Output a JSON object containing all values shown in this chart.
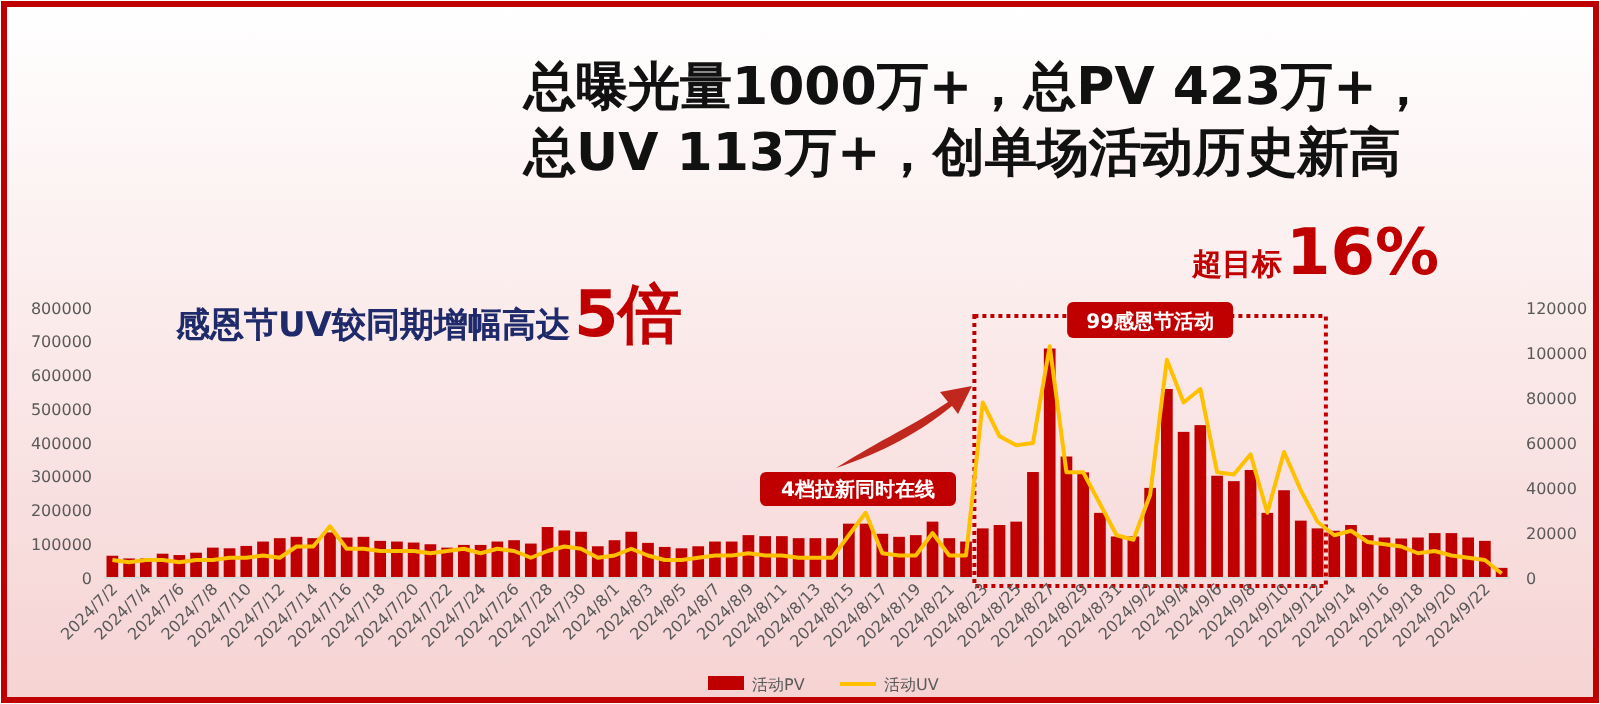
{
  "chart_data": {
    "type": "bar",
    "title": "总曝光量1000万+，总PV 423万+，",
    "subtitle": "总UV 113万+，创单场活动历史新高",
    "annotations": [
      "感恩节UV较同期增幅高达",
      "5倍",
      "超目标",
      "16%",
      "4档拉新同时在线",
      "99感恩节活动"
    ],
    "categories": [
      "2024/7/2",
      null,
      "2024/7/4",
      null,
      "2024/7/6",
      null,
      "2024/7/8",
      null,
      "2024/7/10",
      null,
      "2024/7/12",
      null,
      "2024/7/14",
      null,
      "2024/7/16",
      null,
      "2024/7/18",
      null,
      "2024/7/20",
      null,
      "2024/7/22",
      null,
      "2024/7/24",
      null,
      "2024/7/26",
      null,
      "2024/7/28",
      null,
      "2024/7/30",
      null,
      "2024/8/1",
      null,
      "2024/8/3",
      null,
      "2024/8/5",
      null,
      "2024/8/7",
      null,
      "2024/8/9",
      null,
      "2024/8/11",
      null,
      "2024/8/13",
      null,
      "2024/8/15",
      null,
      "2024/8/17",
      null,
      "2024/8/19",
      null,
      "2024/8/21",
      null,
      "2024/8/23",
      null,
      "2024/8/25",
      null,
      "2024/8/27",
      null,
      "2024/8/29",
      null,
      "2024/8/31",
      null,
      "2024/9/2",
      null,
      "2024/9/4",
      null,
      "2024/9/6",
      null,
      "2024/9/8",
      null,
      "2024/9/10",
      null,
      "2024/9/12",
      null,
      "2024/9/14",
      null,
      "2024/9/16",
      null,
      "2024/9/18",
      null,
      "2024/9/20",
      null,
      "2024/9/22",
      null
    ],
    "series": [
      {
        "name": "活动PV",
        "color": "#c00000",
        "values": [
          66000,
          58000,
          58000,
          72000,
          68000,
          75000,
          90000,
          88000,
          95000,
          108000,
          118000,
          122000,
          118000,
          135000,
          120000,
          122000,
          110000,
          108000,
          105000,
          100000,
          90000,
          98000,
          98000,
          108000,
          112000,
          102000,
          151000,
          141000,
          137000,
          94000,
          112000,
          137000,
          104000,
          92000,
          88000,
          94000,
          108000,
          108000,
          127000,
          124000,
          124000,
          118000,
          118000,
          118000,
          161000,
          161000,
          131000,
          122000,
          127000,
          167000,
          118000,
          108000,
          147000,
          157000,
          167000,
          314000,
          680000,
          360000,
          313000,
          193000,
          123000,
          123000,
          267000,
          560000,
          433000,
          453000,
          303000,
          287000,
          320000,
          193000,
          260000,
          170000,
          147000,
          140000,
          157000,
          127000,
          120000,
          117000,
          120000,
          133000,
          133000,
          120000,
          110000,
          30000
        ]
      },
      {
        "name": "活动UV",
        "type": "line",
        "axis": "y2",
        "color": "#ffc000",
        "values": [
          8000,
          7000,
          8000,
          8000,
          7000,
          8000,
          8000,
          9000,
          9000,
          10000,
          9000,
          14000,
          14000,
          23000,
          13000,
          13000,
          12000,
          12000,
          12000,
          11000,
          12000,
          13000,
          11000,
          13000,
          12000,
          9000,
          12000,
          14000,
          13000,
          9000,
          10000,
          13000,
          10000,
          8000,
          8000,
          9000,
          10000,
          10000,
          11000,
          10000,
          10000,
          9000,
          9000,
          9000,
          19000,
          29000,
          11000,
          10000,
          10000,
          20000,
          10000,
          10000,
          78000,
          63000,
          59000,
          60000,
          103000,
          47000,
          47000,
          33000,
          19000,
          17000,
          37000,
          97000,
          78000,
          84000,
          47000,
          46000,
          55000,
          29000,
          56000,
          39000,
          25000,
          19000,
          21000,
          16000,
          15000,
          14000,
          11000,
          12000,
          10000,
          9000,
          8000,
          2000
        ]
      }
    ],
    "ylim": [
      0,
      800000
    ],
    "yticks": [
      0,
      100000,
      200000,
      300000,
      400000,
      500000,
      600000,
      700000,
      800000
    ],
    "y2lim": [
      0,
      120000
    ],
    "y2ticks": [
      0,
      20000,
      40000,
      60000,
      80000,
      100000,
      120000
    ],
    "legend": "bottom",
    "grid": false,
    "marker": "none",
    "line_style": "solid"
  }
}
